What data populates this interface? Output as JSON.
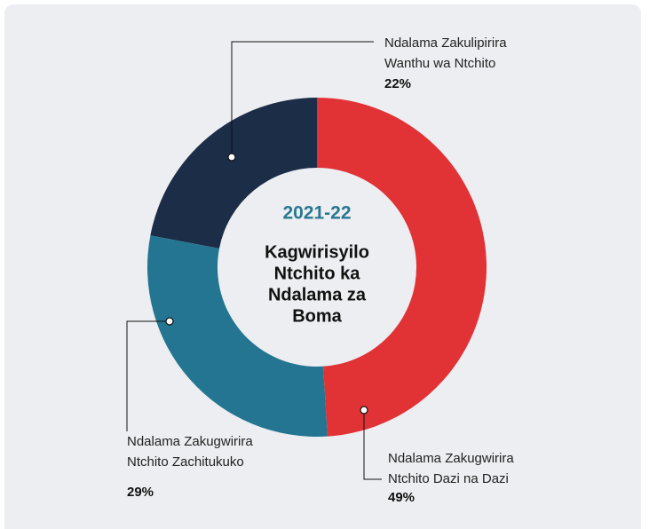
{
  "chart_data": {
    "type": "donut",
    "center_label": "2021-22",
    "title_lines": [
      "Kagwirisyilo",
      "Ntchito ka",
      "Ndalama za",
      "Boma"
    ],
    "categories": [
      "Ndalama Zakugwirira\nNtchito Dazi na Dazi",
      "Ndalama Zakugwirira\nNtchito Zachitukuko",
      "Ndalama Zakulipirira\nWanthu wa Ntchito"
    ],
    "values": [
      49,
      29,
      22
    ],
    "value_labels": [
      "49%",
      "29%",
      "22%"
    ],
    "colors": [
      "#e13236",
      "#247591",
      "#1c2d47"
    ],
    "center_color": "#2a7890"
  }
}
